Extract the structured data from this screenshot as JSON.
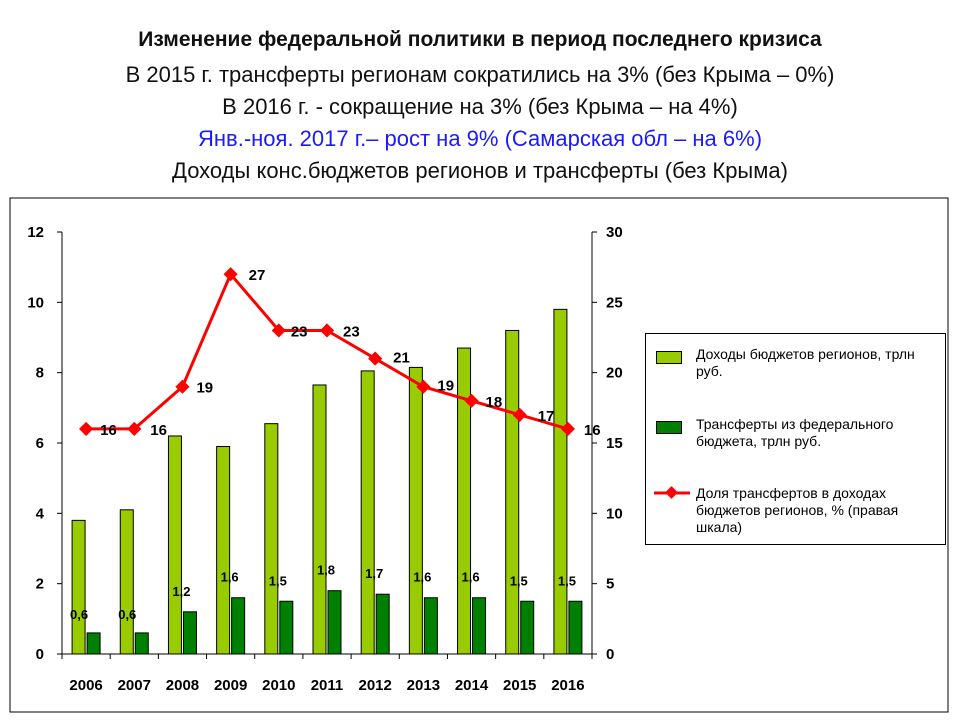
{
  "slide": {
    "title": "Изменение федеральной политики в период последнего кризиса",
    "line2": "В 2015 г. трансферты регионам сократились на 3% (без Крыма – 0%)",
    "line3": "В 2016 г. - сокращение на 3% (без Крыма – на 4%)",
    "line4": "Янв.-ноя. 2017 г.– рост на 9% (Самарская обл – на 6%)",
    "line5": "Доходы конс.бюджетов регионов и трансферты (без Крыма)"
  },
  "chart_data": {
    "type": "bar",
    "categories": [
      "2006",
      "2007",
      "2008",
      "2009",
      "2010",
      "2011",
      "2012",
      "2013",
      "2014",
      "2015",
      "2016"
    ],
    "series": [
      {
        "name": "Доходы бюджетов регионов, трлн руб.",
        "axis": "left",
        "type": "bar",
        "color": "#99cc00",
        "values": [
          3.8,
          4.1,
          6.2,
          5.9,
          6.55,
          7.65,
          8.05,
          8.15,
          8.7,
          9.2,
          9.8
        ]
      },
      {
        "name": "Трансферты из федерального бюджета, трлн руб.",
        "axis": "left",
        "type": "bar",
        "color": "#008000",
        "values": [
          0.6,
          0.6,
          1.2,
          1.6,
          1.5,
          1.8,
          1.7,
          1.6,
          1.6,
          1.5,
          1.5
        ],
        "labels": [
          "0,6",
          "0,6",
          "1,2",
          "1,6",
          "1,5",
          "1,8",
          "1,7",
          "1,6",
          "1,6",
          "1,5",
          "1,5"
        ]
      },
      {
        "name": "Доля трансфертов в доходах бюджетов регионов, % (правая шкала)",
        "axis": "right",
        "type": "line",
        "color": "#ff0000",
        "values": [
          16,
          16,
          19,
          27,
          23,
          23,
          21,
          19,
          18,
          17,
          16
        ],
        "labels": [
          "16",
          "16",
          "19",
          "27",
          "23",
          "23",
          "21",
          "19",
          "18",
          "17",
          "16"
        ]
      }
    ],
    "left_axis": {
      "min": 0,
      "max": 12,
      "ticks": [
        "0",
        "2",
        "4",
        "6",
        "8",
        "10",
        "12"
      ]
    },
    "right_axis": {
      "min": 0,
      "max": 30,
      "ticks": [
        "0",
        "5",
        "10",
        "15",
        "20",
        "25",
        "30"
      ]
    },
    "legend": {
      "placement": "right",
      "items": [
        "Доходы бюджетов регионов, трлн руб.",
        "Трансферты из федерального бюджета, трлн руб.",
        "Доля трансфертов в доходах бюджетов регионов, % (правая шкала)"
      ]
    },
    "grid": false
  }
}
